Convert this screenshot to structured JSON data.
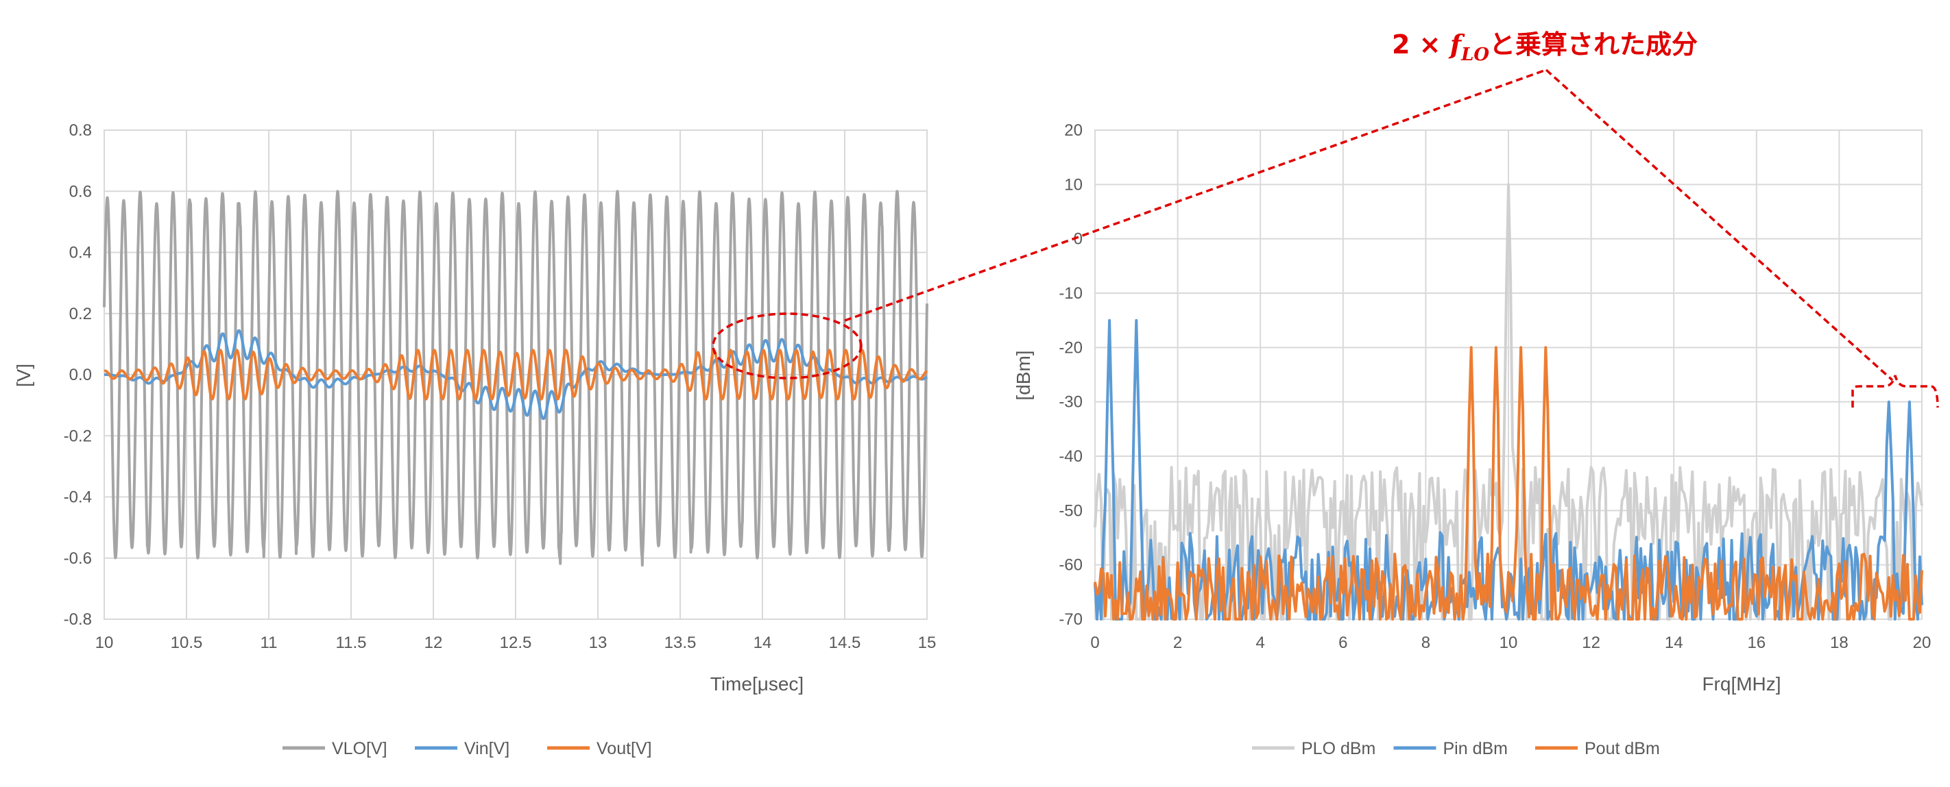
{
  "chart_data": [
    {
      "type": "line",
      "xlabel": "Time[μsec]",
      "ylabel": "[V]",
      "xlim": [
        10,
        15
      ],
      "ylim": [
        -0.8,
        0.8
      ],
      "x_ticks": [
        "10",
        "10.5",
        "11",
        "11.5",
        "12",
        "12.5",
        "13",
        "13.5",
        "14",
        "14.5",
        "15"
      ],
      "y_ticks": [
        "0.8",
        "0.6",
        "0.4",
        "0.2",
        "0.0",
        "-0.2",
        "-0.4",
        "-0.6",
        "-0.8"
      ],
      "grid": true,
      "legend_position": "bottom",
      "series": [
        {
          "name": "VLO[V]",
          "color": "#a5a5a5",
          "description": "sinusoid, amplitude about 0.58 V, about 50 cycles over 10–15 μsec (frequency about 10 MHz)",
          "amplitude": 0.58,
          "frequency_mhz": 10
        },
        {
          "name": "Vin[V]",
          "color": "#5b9bd5",
          "description": "slow wave of amplitude about 0.1 V (period about 1 μsec) with small 10 MHz ripple",
          "x": [
            10,
            10.3,
            10.8,
            11.3,
            11.9,
            12.4,
            12.7,
            13.0,
            13.4,
            14.1,
            14.6,
            15
          ],
          "values": [
            0.0,
            -0.02,
            0.1,
            -0.03,
            0.02,
            -0.08,
            -0.1,
            0.03,
            0.0,
            0.08,
            -0.02,
            -0.01
          ]
        },
        {
          "name": "Vout[V]",
          "color": "#ed7d31",
          "description": "10 MHz oscillation with amplitude envelope up to about 0.08 V, bursts around 10.7, 12.2, 12.7, 14.0, 14.5 μsec",
          "envelope_peak": 0.08,
          "frequency_mhz": 10
        }
      ]
    },
    {
      "type": "line",
      "xlabel": "Frq[MHz]",
      "ylabel": "[dBm]",
      "xlim": [
        0,
        20
      ],
      "ylim": [
        -70,
        20
      ],
      "x_ticks": [
        "0",
        "2",
        "4",
        "6",
        "8",
        "10",
        "12",
        "14",
        "16",
        "18",
        "20"
      ],
      "y_ticks": [
        "20",
        "10",
        "0",
        "-10",
        "-20",
        "-30",
        "-40",
        "-50",
        "-60",
        "-70"
      ],
      "grid": true,
      "legend_position": "bottom",
      "series": [
        {
          "name": "PLO dBm",
          "color": "#d0d0d0",
          "description": "noise floor about -45 to -55 dBm with a single peak at 10 MHz",
          "peaks": [
            {
              "x": 10.0,
              "y": 10
            }
          ],
          "floor": [
            -57,
            -42
          ]
        },
        {
          "name": "Pin dBm",
          "color": "#5b9bd5",
          "description": "noise floor about -55 to -70 dBm, peaks at 0.3, 1.0, 19.2, 19.7 MHz",
          "peaks": [
            {
              "x": 0.35,
              "y": -15
            },
            {
              "x": 1.0,
              "y": -15
            },
            {
              "x": 19.2,
              "y": -30
            },
            {
              "x": 19.7,
              "y": -30
            }
          ],
          "floor": [
            -70,
            -54
          ]
        },
        {
          "name": "Pout dBm",
          "color": "#ed7d31",
          "description": "noise floor about -60 to -70 dBm, peaks at 9.1, 9.7, 10.3, 10.9 MHz",
          "peaks": [
            {
              "x": 9.1,
              "y": -20
            },
            {
              "x": 9.7,
              "y": -20
            },
            {
              "x": 10.3,
              "y": -20
            },
            {
              "x": 10.9,
              "y": -20
            }
          ],
          "floor": [
            -70,
            -58
          ]
        }
      ]
    }
  ],
  "annotation": {
    "prefix": "2 × ",
    "symbol": "f",
    "subscript": "LO",
    "suffix": "と乗算された成分",
    "color": "#e00000"
  }
}
